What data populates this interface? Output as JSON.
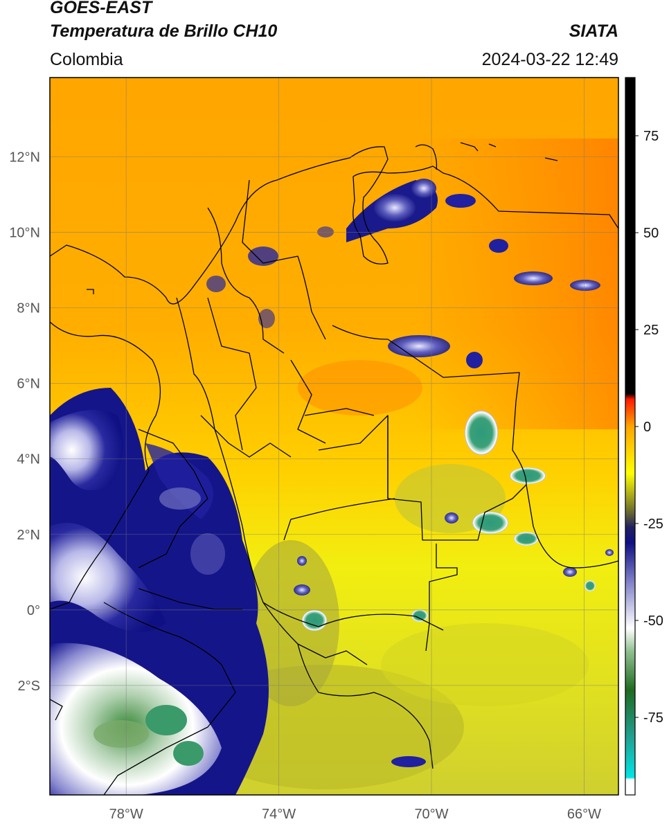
{
  "header": {
    "satellite": "GOES-EAST",
    "product": "Temperatura de Brillo CH10",
    "agency": "SIATA",
    "region": "Colombia",
    "datetime": "2024-03-22 12:49"
  },
  "map": {
    "lon_range": [
      -80,
      -65.1
    ],
    "lat_range": [
      -4.9,
      14.1
    ],
    "lon_ticks": [
      {
        "value": -78,
        "label": "78°W"
      },
      {
        "value": -74,
        "label": "74°W"
      },
      {
        "value": -70,
        "label": "70°W"
      },
      {
        "value": -66,
        "label": "66°W"
      }
    ],
    "lat_ticks": [
      {
        "value": 12,
        "label": "12°N"
      },
      {
        "value": 10,
        "label": "10°N"
      },
      {
        "value": 8,
        "label": "8°N"
      },
      {
        "value": 6,
        "label": "6°N"
      },
      {
        "value": 4,
        "label": "4°N"
      },
      {
        "value": 2,
        "label": "2°N"
      },
      {
        "value": 0,
        "label": "0°"
      },
      {
        "value": -2,
        "label": "2°S"
      }
    ],
    "grid": true
  },
  "colorbar": {
    "range": [
      -95,
      90
    ],
    "ticks": [
      {
        "value": 75,
        "label": "75"
      },
      {
        "value": 50,
        "label": "50"
      },
      {
        "value": 25,
        "label": "25"
      },
      {
        "value": 0,
        "label": "0"
      },
      {
        "value": -25,
        "label": "-25"
      },
      {
        "value": -50,
        "label": "-50"
      },
      {
        "value": -75,
        "label": "-75"
      }
    ],
    "stops": [
      {
        "value": -95,
        "color": "#ffffff"
      },
      {
        "value": -91,
        "color": "#ffffff"
      },
      {
        "value": -90.5,
        "color": "#00e5e5"
      },
      {
        "value": -80,
        "color": "#20a090"
      },
      {
        "value": -68,
        "color": "#1f6b1f"
      },
      {
        "value": -58,
        "color": "#8fbf8f"
      },
      {
        "value": -52,
        "color": "#ffffff"
      },
      {
        "value": -40,
        "color": "#8080c8"
      },
      {
        "value": -30,
        "color": "#101085"
      },
      {
        "value": -26,
        "color": "#202060"
      },
      {
        "value": -22,
        "color": "#6a6a30"
      },
      {
        "value": -12,
        "color": "#ffff00"
      },
      {
        "value": 0,
        "color": "#ffa500"
      },
      {
        "value": 7,
        "color": "#ff1a00"
      },
      {
        "value": 8.5,
        "color": "#000000"
      },
      {
        "value": 90,
        "color": "#000000"
      }
    ]
  }
}
